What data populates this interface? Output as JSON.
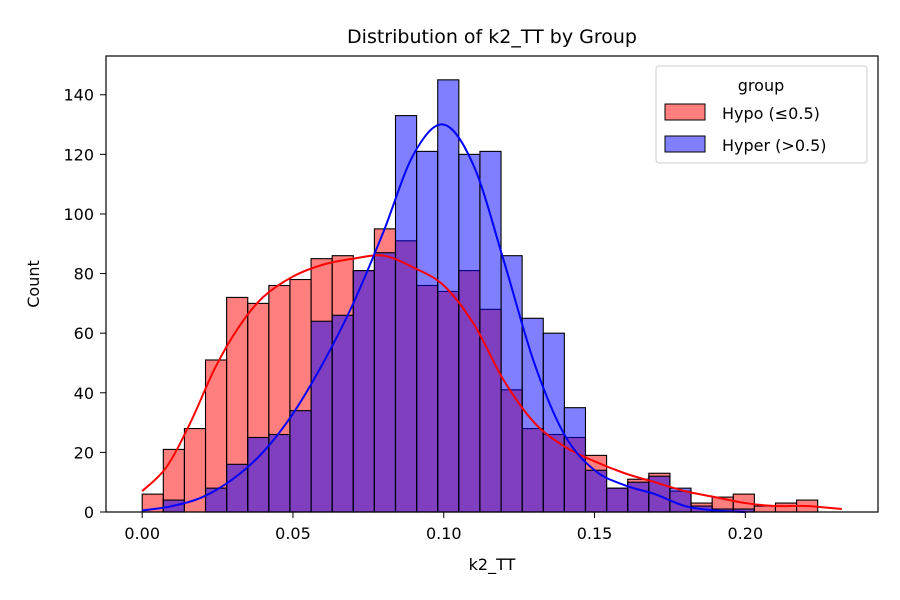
{
  "chart_data": {
    "type": "histogram",
    "title": "Distribution of k2_TT by Group",
    "xlabel": "k2_TT",
    "ylabel": "Count",
    "xlim": [
      -0.012,
      0.244
    ],
    "ylim": [
      0,
      153
    ],
    "x_ticks": [
      0.0,
      0.05,
      0.1,
      0.15,
      0.2
    ],
    "x_tick_labels": [
      "0.00",
      "0.05",
      "0.10",
      "0.15",
      "0.20"
    ],
    "y_ticks": [
      0,
      20,
      40,
      60,
      80,
      100,
      120,
      140
    ],
    "y_tick_labels": [
      "0",
      "20",
      "40",
      "60",
      "80",
      "100",
      "120",
      "140"
    ],
    "bin_start": 0.0,
    "bin_width": 0.007,
    "grid": false,
    "legend": {
      "title": "group",
      "placement": "top-right"
    },
    "series": [
      {
        "name": "Hypo (≤0.5)",
        "color": "#ff0000",
        "fill_opacity": 0.5,
        "counts": [
          6,
          21,
          28,
          51,
          72,
          70,
          76,
          78,
          85,
          86,
          81,
          95,
          91,
          76,
          74,
          81,
          68,
          41,
          28,
          26,
          25,
          19,
          8,
          11,
          13,
          7,
          3,
          5,
          6,
          2,
          3,
          4,
          0
        ],
        "kde": [
          [
            0.0,
            7
          ],
          [
            0.008,
            15
          ],
          [
            0.016,
            30
          ],
          [
            0.024,
            48
          ],
          [
            0.032,
            62
          ],
          [
            0.04,
            72
          ],
          [
            0.05,
            79
          ],
          [
            0.06,
            83
          ],
          [
            0.07,
            85
          ],
          [
            0.08,
            86
          ],
          [
            0.09,
            82
          ],
          [
            0.1,
            76
          ],
          [
            0.11,
            63
          ],
          [
            0.12,
            44
          ],
          [
            0.13,
            30
          ],
          [
            0.14,
            22
          ],
          [
            0.15,
            17
          ],
          [
            0.16,
            13
          ],
          [
            0.17,
            10
          ],
          [
            0.18,
            7
          ],
          [
            0.19,
            5
          ],
          [
            0.2,
            3
          ],
          [
            0.21,
            2
          ],
          [
            0.22,
            2
          ],
          [
            0.232,
            1
          ]
        ]
      },
      {
        "name": "Hyper (>0.5)",
        "color": "#0000ff",
        "fill_opacity": 0.5,
        "counts": [
          0,
          4,
          0,
          8,
          16,
          25,
          26,
          34,
          64,
          66,
          81,
          87,
          133,
          121,
          145,
          120,
          121,
          86,
          65,
          60,
          35,
          14,
          8,
          10,
          12,
          8,
          2,
          1,
          1,
          0,
          0,
          0,
          0
        ],
        "kde": [
          [
            0.0,
            0.5
          ],
          [
            0.01,
            2
          ],
          [
            0.02,
            5
          ],
          [
            0.03,
            11
          ],
          [
            0.04,
            20
          ],
          [
            0.05,
            33
          ],
          [
            0.06,
            50
          ],
          [
            0.07,
            70
          ],
          [
            0.08,
            94
          ],
          [
            0.09,
            120
          ],
          [
            0.1,
            130
          ],
          [
            0.11,
            116
          ],
          [
            0.12,
            84
          ],
          [
            0.13,
            50
          ],
          [
            0.14,
            26
          ],
          [
            0.15,
            14
          ],
          [
            0.16,
            9
          ],
          [
            0.17,
            6
          ],
          [
            0.18,
            2
          ],
          [
            0.19,
            0.5
          ],
          [
            0.2,
            0
          ]
        ]
      }
    ]
  }
}
